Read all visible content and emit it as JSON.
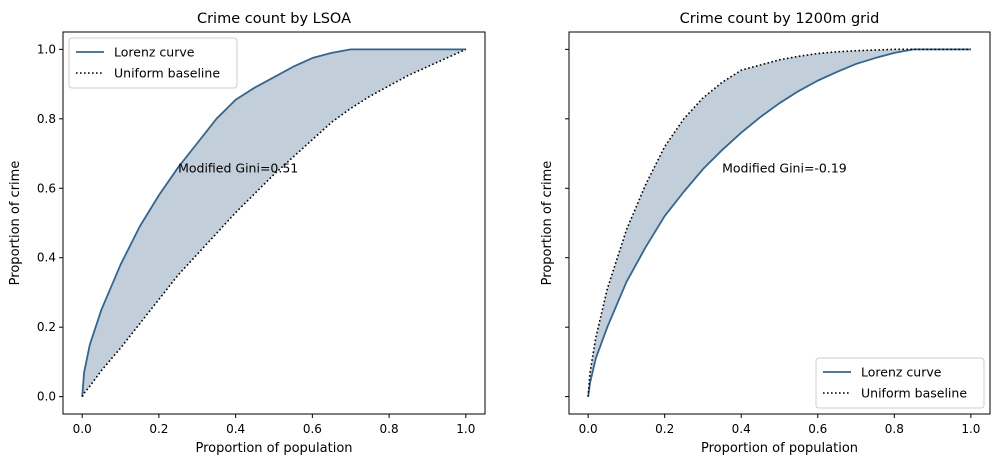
{
  "chart_data": [
    {
      "type": "line",
      "title": "Crime count by LSOA",
      "xlabel": "Proportion of population",
      "ylabel": "Proportion of crime",
      "xlim": [
        -0.05,
        1.05
      ],
      "ylim": [
        -0.05,
        1.05
      ],
      "xticks": [
        "0.0",
        "0.2",
        "0.4",
        "0.6",
        "0.8",
        "1.0"
      ],
      "yticks": [
        "0.0",
        "0.2",
        "0.4",
        "0.6",
        "0.8",
        "1.0"
      ],
      "show_yticklabels": true,
      "legend": {
        "position": "upper-left",
        "entries": [
          "Lorenz curve",
          "Uniform baseline"
        ]
      },
      "annotation": {
        "text": "Modified Gini=0.51",
        "x": 0.25,
        "y": 0.66
      },
      "series": [
        {
          "name": "Lorenz curve",
          "style": "solid",
          "color": "#35658e",
          "x": [
            0,
            0.005,
            0.02,
            0.05,
            0.1,
            0.15,
            0.2,
            0.25,
            0.3,
            0.35,
            0.4,
            0.45,
            0.5,
            0.55,
            0.6,
            0.65,
            0.7,
            0.75,
            0.8,
            0.85,
            0.9,
            0.95,
            1.0
          ],
          "y": [
            0.0,
            0.07,
            0.15,
            0.25,
            0.38,
            0.49,
            0.58,
            0.66,
            0.73,
            0.8,
            0.855,
            0.89,
            0.92,
            0.95,
            0.975,
            0.99,
            1.0,
            1.0,
            1.0,
            1.0,
            1.0,
            1.0,
            1.0
          ]
        },
        {
          "name": "Uniform baseline",
          "style": "dotted",
          "color": "#000000",
          "x": [
            0,
            0.005,
            0.02,
            0.05,
            0.1,
            0.15,
            0.2,
            0.25,
            0.3,
            0.35,
            0.4,
            0.45,
            0.5,
            0.55,
            0.6,
            0.65,
            0.7,
            0.75,
            0.8,
            0.85,
            0.9,
            0.95,
            1.0
          ],
          "y": [
            0.0,
            0.01,
            0.03,
            0.075,
            0.14,
            0.21,
            0.28,
            0.35,
            0.41,
            0.47,
            0.53,
            0.585,
            0.64,
            0.69,
            0.74,
            0.79,
            0.83,
            0.865,
            0.895,
            0.925,
            0.95,
            0.975,
            1.0
          ]
        }
      ],
      "fill_between": {
        "color": "#c2ceda"
      }
    },
    {
      "type": "line",
      "title": "Crime count by 1200m grid",
      "xlabel": "Proportion of population",
      "ylabel": "Proportion of crime",
      "xlim": [
        -0.05,
        1.05
      ],
      "ylim": [
        -0.05,
        1.05
      ],
      "xticks": [
        "0.0",
        "0.2",
        "0.4",
        "0.6",
        "0.8",
        "1.0"
      ],
      "yticks": [
        "0.0",
        "0.2",
        "0.4",
        "0.6",
        "0.8",
        "1.0"
      ],
      "show_yticklabels": false,
      "legend": {
        "position": "lower-right",
        "entries": [
          "Lorenz curve",
          "Uniform baseline"
        ]
      },
      "annotation": {
        "text": "Modified Gini=-0.19",
        "x": 0.35,
        "y": 0.66
      },
      "series": [
        {
          "name": "Lorenz curve",
          "style": "solid",
          "color": "#35658e",
          "x": [
            0,
            0.005,
            0.02,
            0.05,
            0.1,
            0.15,
            0.2,
            0.25,
            0.3,
            0.35,
            0.4,
            0.45,
            0.5,
            0.55,
            0.6,
            0.65,
            0.7,
            0.75,
            0.8,
            0.85,
            0.9,
            0.95,
            1.0
          ],
          "y": [
            0.0,
            0.04,
            0.11,
            0.2,
            0.33,
            0.43,
            0.52,
            0.59,
            0.655,
            0.71,
            0.76,
            0.805,
            0.845,
            0.88,
            0.91,
            0.935,
            0.958,
            0.975,
            0.99,
            1.0,
            1.0,
            1.0,
            1.0
          ]
        },
        {
          "name": "Uniform baseline",
          "style": "dotted",
          "color": "#000000",
          "x": [
            0,
            0.005,
            0.02,
            0.05,
            0.1,
            0.15,
            0.2,
            0.25,
            0.3,
            0.35,
            0.4,
            0.45,
            0.5,
            0.55,
            0.6,
            0.65,
            0.7,
            0.75,
            0.8,
            0.85,
            0.9,
            0.95,
            1.0
          ],
          "y": [
            0.0,
            0.07,
            0.17,
            0.31,
            0.48,
            0.61,
            0.72,
            0.8,
            0.86,
            0.905,
            0.94,
            0.955,
            0.97,
            0.98,
            0.988,
            0.993,
            0.996,
            0.998,
            1.0,
            1.0,
            1.0,
            1.0,
            1.0
          ]
        }
      ],
      "fill_between": {
        "color": "#c2ceda"
      }
    }
  ]
}
